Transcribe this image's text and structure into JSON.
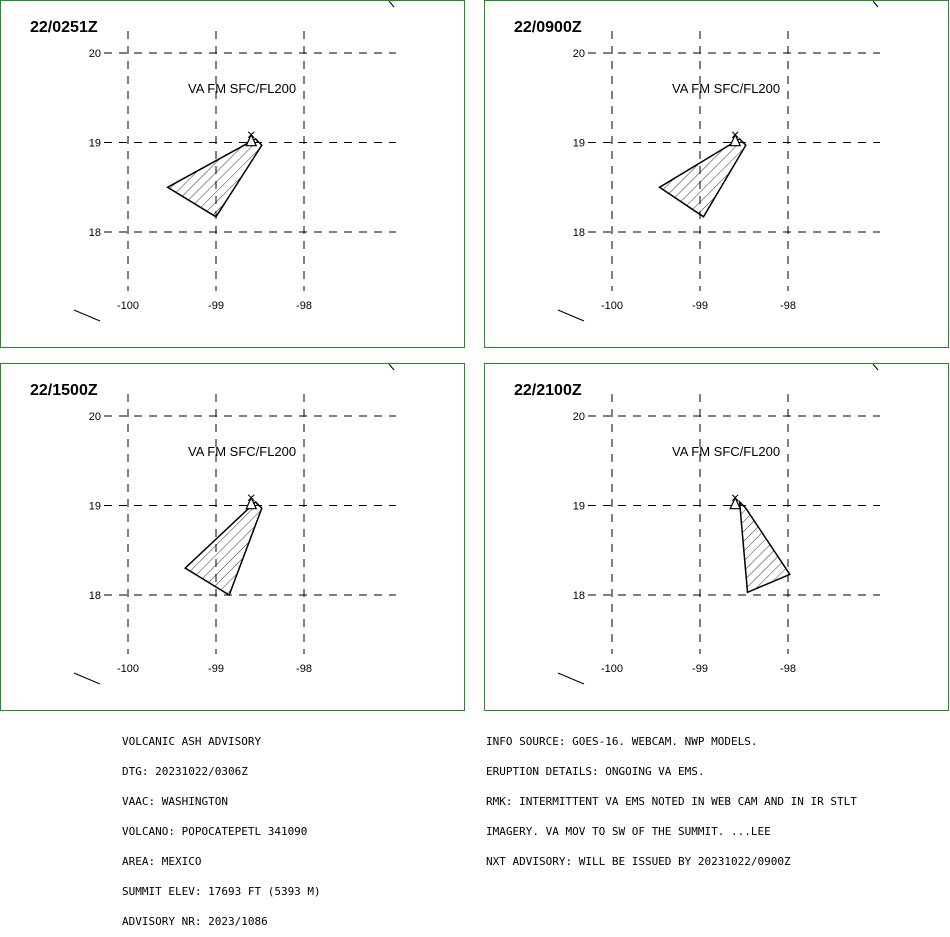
{
  "panels": [
    {
      "time": "22/0251Z",
      "label": "VA FM SFC/FL200",
      "polygon": [
        [
          -98.55,
          19.04
        ],
        [
          -98.48,
          18.97
        ],
        [
          -99.0,
          18.17
        ],
        [
          -99.55,
          18.5
        ],
        [
          -98.55,
          19.04
        ]
      ]
    },
    {
      "time": "22/0900Z",
      "label": "VA FM SFC/FL200",
      "polygon": [
        [
          -98.55,
          19.04
        ],
        [
          -98.48,
          18.97
        ],
        [
          -98.96,
          18.17
        ],
        [
          -99.46,
          18.5
        ],
        [
          -98.55,
          19.04
        ]
      ]
    },
    {
      "time": "22/1500Z",
      "label": "VA FM SFC/FL200",
      "polygon": [
        [
          -98.55,
          19.04
        ],
        [
          -98.48,
          18.97
        ],
        [
          -98.85,
          18.0
        ],
        [
          -99.35,
          18.3
        ],
        [
          -98.55,
          19.04
        ]
      ]
    },
    {
      "time": "22/2100Z",
      "label": "VA FM SFC/FL200",
      "polygon": [
        [
          -98.55,
          19.04
        ],
        [
          -98.48,
          18.97
        ],
        [
          -97.98,
          18.23
        ],
        [
          -98.46,
          18.03
        ],
        [
          -98.55,
          19.04
        ]
      ]
    }
  ],
  "axes": {
    "lat_ticks": [
      "20",
      "19",
      "18"
    ],
    "lon_ticks": [
      "-100",
      "-99",
      "-98"
    ]
  },
  "advisory_left": [
    "VOLCANIC ASH ADVISORY",
    "DTG: 20231022/0306Z",
    "VAAC: WASHINGTON",
    "VOLCANO: POPOCATEPETL 341090",
    "AREA: MEXICO",
    "SUMMIT ELEV: 17693 FT (5393 M)",
    "ADVISORY NR: 2023/1086"
  ],
  "advisory_right": [
    "INFO SOURCE: GOES-16. WEBCAM. NWP MODELS.",
    "ERUPTION DETAILS: ONGOING VA EMS.",
    "RMK: INTERMITTENT VA EMS NOTED IN WEB CAM AND IN IR STLT",
    "IMAGERY. VA MOV TO SW OF THE SUMMIT. ...LEE",
    "NXT ADVISORY: WILL BE ISSUED BY 20231022/0900Z"
  ],
  "colors": {
    "panel_border": "#1f8f1f",
    "ink": "#000000"
  },
  "icons": {
    "volcano": "triangle-icon"
  }
}
